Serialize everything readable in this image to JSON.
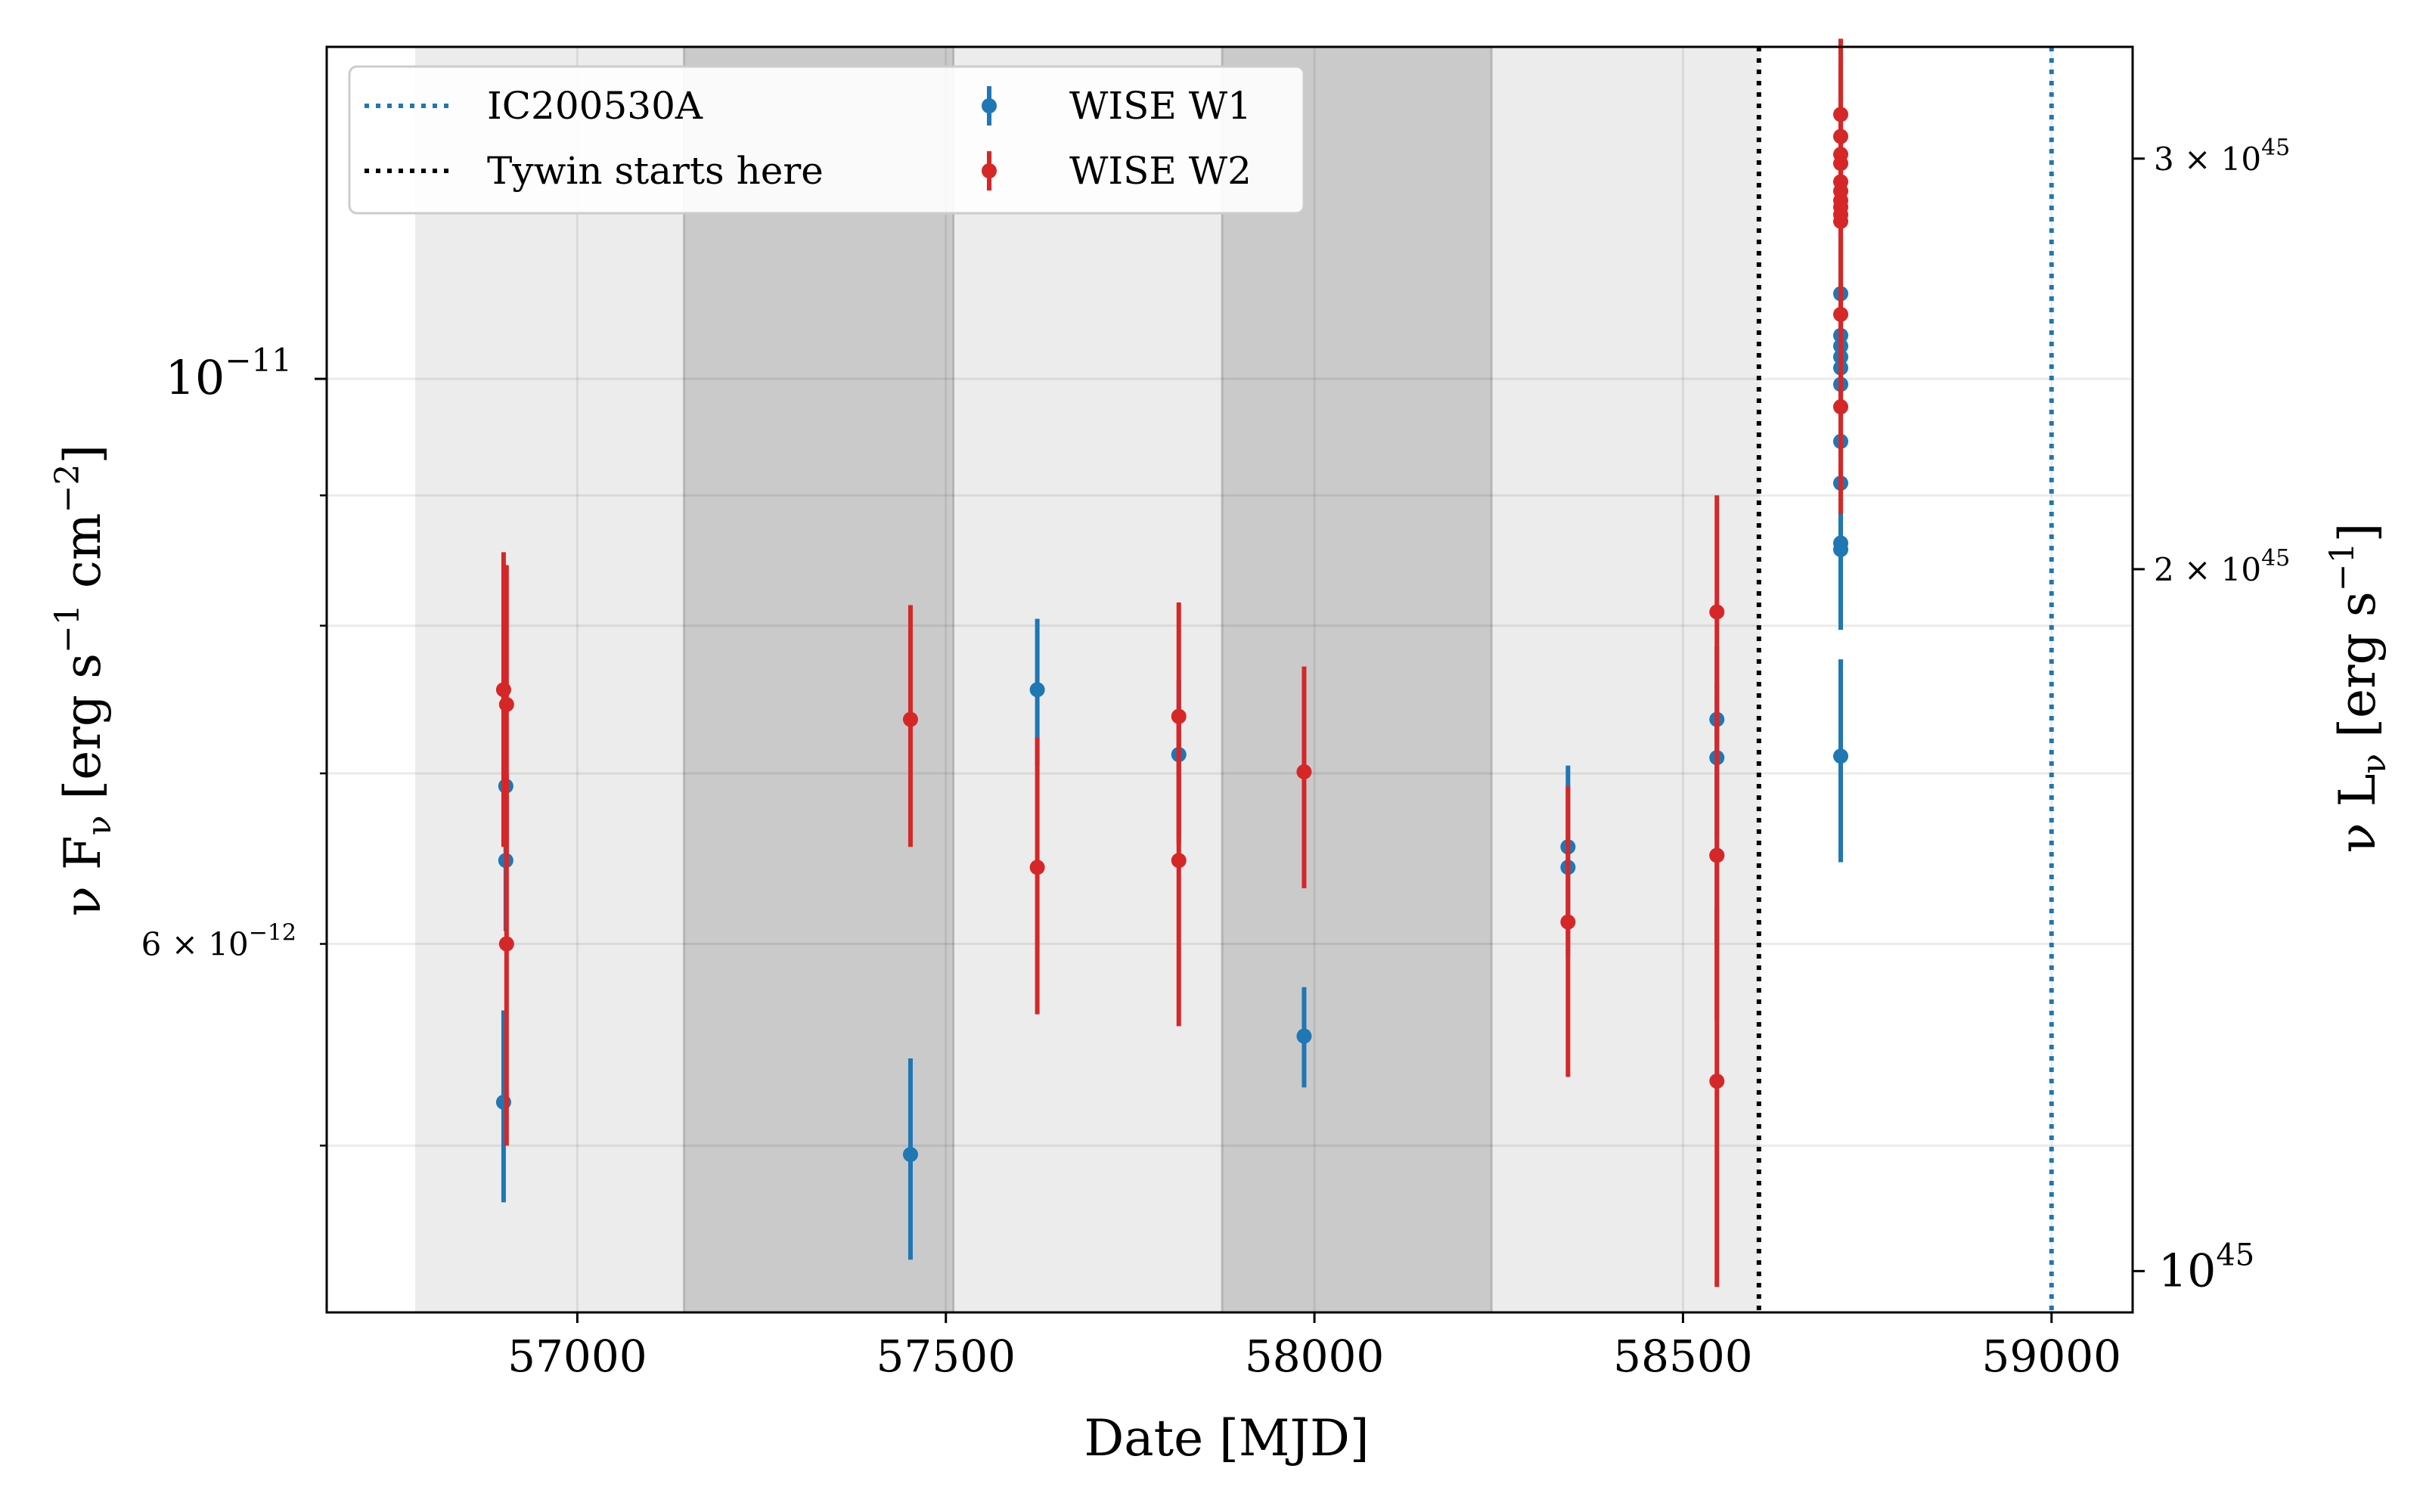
{
  "chart_data": {
    "type": "scatter",
    "xlabel": "Date [MJD]",
    "ylabel_left": {
      "main": "ν F",
      "sub": "ν",
      "unit": "[erg s",
      "exp1": "−1",
      "mid": "cm",
      "exp2": "−2",
      "close": "]"
    },
    "ylabel_right": {
      "main": "ν L",
      "sub": "ν",
      "unit": "[erg s",
      "exp1": "−1",
      "close": "]"
    },
    "xlim": [
      56660,
      59110
    ],
    "ylim_left": [
      4.3e-12,
      1.35e-11
    ],
    "ylim_right": [
      9.6e+44,
      3.35e+45
    ],
    "yscale": "log",
    "x_ticks": [
      {
        "value": 57000,
        "label": "57000"
      },
      {
        "value": 57500,
        "label": "57500"
      },
      {
        "value": 58000,
        "label": "58000"
      },
      {
        "value": 58500,
        "label": "58500"
      },
      {
        "value": 59000,
        "label": "59000"
      }
    ],
    "y_left_major": [
      {
        "value": 1e-11,
        "base": "10",
        "exp": "−11"
      }
    ],
    "y_left_minor_labeled": [
      {
        "value": 6e-12,
        "coef": "6 × 10",
        "exp": "−12"
      }
    ],
    "y_left_minor": [
      5e-12,
      7e-12,
      8e-12,
      9e-12
    ],
    "y_right_ticks": [
      {
        "value": 1e+45,
        "base": "10",
        "exp": "45",
        "coef": ""
      },
      {
        "value": 2e+45,
        "coef": "2 × 10",
        "exp": "45"
      },
      {
        "value": 3e+45,
        "coef": "3 × 10",
        "exp": "45"
      }
    ],
    "grid": true,
    "shaded_bands": [
      {
        "x0": 56780,
        "x1": 57145,
        "color": "#ececec"
      },
      {
        "x0": 57145,
        "x1": 57510,
        "color": "#cacaca"
      },
      {
        "x0": 57510,
        "x1": 57875,
        "color": "#ececec"
      },
      {
        "x0": 57875,
        "x1": 58240,
        "color": "#cacaca"
      },
      {
        "x0": 58240,
        "x1": 58605,
        "color": "#ececec"
      }
    ],
    "vlines": [
      {
        "x": 58603,
        "color": "#000000",
        "label": "Tywin starts here"
      },
      {
        "x": 59000,
        "color": "#1f77b4",
        "label": "IC200530A"
      }
    ],
    "series": [
      {
        "name": "WISE W1",
        "color": "#1f77b4",
        "points": [
          {
            "x": 56903,
            "y": 6.92e-12,
            "err": 4e-13
          },
          {
            "x": 56903,
            "y": 6.47e-12,
            "err": 4e-13
          },
          {
            "x": 56900,
            "y": 5.2e-12,
            "err": 4.5e-13
          },
          {
            "x": 57452,
            "y": 4.96e-12,
            "err": 4.5e-13
          },
          {
            "x": 57624,
            "y": 7.55e-12,
            "err": 5e-13
          },
          {
            "x": 57816,
            "y": 7.12e-12,
            "err": 5e-13
          },
          {
            "x": 57986,
            "y": 5.52e-12,
            "err": 2.5e-13
          },
          {
            "x": 58344,
            "y": 6.55e-12,
            "err": 5e-13
          },
          {
            "x": 58344,
            "y": 6.43e-12,
            "err": 5e-13
          },
          {
            "x": 58546,
            "y": 7.35e-12,
            "err": 5e-13
          },
          {
            "x": 58546,
            "y": 7.1e-12,
            "err": 5e-13
          },
          {
            "x": 58546,
            "y": 6.5e-12,
            "err": 5e-13
          },
          {
            "x": 58714,
            "y": 7.11e-12,
            "err": 6.5e-13
          },
          {
            "x": 58714,
            "y": 1.08e-11,
            "err": 6e-13
          },
          {
            "x": 58714,
            "y": 1.04e-11,
            "err": 6e-13
          },
          {
            "x": 58714,
            "y": 1.03e-11,
            "err": 6e-13
          },
          {
            "x": 58714,
            "y": 1.02e-11,
            "err": 6e-13
          },
          {
            "x": 58714,
            "y": 1.01e-11,
            "err": 6e-13
          },
          {
            "x": 58714,
            "y": 9.95e-12,
            "err": 6e-13
          },
          {
            "x": 58714,
            "y": 9.45e-12,
            "err": 6e-13
          },
          {
            "x": 58714,
            "y": 9.1e-12,
            "err": 6e-13
          },
          {
            "x": 58714,
            "y": 8.62e-12,
            "err": 6e-13
          },
          {
            "x": 58714,
            "y": 8.57e-12,
            "err": 6e-13
          }
        ]
      },
      {
        "name": "WISE W2",
        "color": "#d62728",
        "points": [
          {
            "x": 56900,
            "y": 7.55e-12,
            "err": 1e-12
          },
          {
            "x": 56904,
            "y": 7.45e-12,
            "err": 1e-12
          },
          {
            "x": 56904,
            "y": 6e-12,
            "err": 1e-12
          },
          {
            "x": 57452,
            "y": 7.35e-12,
            "err": 8e-13
          },
          {
            "x": 57624,
            "y": 6.43e-12,
            "err": 8e-13
          },
          {
            "x": 57816,
            "y": 7.37e-12,
            "err": 8e-13
          },
          {
            "x": 57816,
            "y": 6.47e-12,
            "err": 9e-13
          },
          {
            "x": 57986,
            "y": 7.01e-12,
            "err": 7e-13
          },
          {
            "x": 58344,
            "y": 6.12e-12,
            "err": 8e-13
          },
          {
            "x": 58546,
            "y": 8.1e-12,
            "err": 9e-13
          },
          {
            "x": 58546,
            "y": 6.5e-12,
            "err": 9e-13
          },
          {
            "x": 58546,
            "y": 5.3e-12,
            "err": 9e-13
          },
          {
            "x": 58714,
            "y": 1.27e-11,
            "err": 9e-13
          },
          {
            "x": 58714,
            "y": 1.245e-11,
            "err": 9e-13
          },
          {
            "x": 58714,
            "y": 1.225e-11,
            "err": 9e-13
          },
          {
            "x": 58714,
            "y": 1.215e-11,
            "err": 9e-13
          },
          {
            "x": 58714,
            "y": 1.195e-11,
            "err": 9e-13
          },
          {
            "x": 58714,
            "y": 1.185e-11,
            "err": 9e-13
          },
          {
            "x": 58714,
            "y": 1.175e-11,
            "err": 9e-13
          },
          {
            "x": 58714,
            "y": 1.168e-11,
            "err": 9e-13
          },
          {
            "x": 58714,
            "y": 1.16e-11,
            "err": 9e-13
          },
          {
            "x": 58714,
            "y": 1.153e-11,
            "err": 9e-13
          },
          {
            "x": 58714,
            "y": 1.06e-11,
            "err": 9e-13
          },
          {
            "x": 58714,
            "y": 9.75e-12,
            "err": 9e-13
          }
        ]
      }
    ],
    "legend": {
      "placement": "top-left",
      "entries": [
        {
          "label": "IC200530A",
          "kind": "dotted-line",
          "color": "#1f77b4"
        },
        {
          "label": "Tywin starts here",
          "kind": "dotted-line",
          "color": "#000000"
        },
        {
          "label": "WISE W1",
          "kind": "errorbar",
          "color": "#1f77b4"
        },
        {
          "label": "WISE W2",
          "kind": "errorbar",
          "color": "#d62728"
        }
      ]
    }
  }
}
